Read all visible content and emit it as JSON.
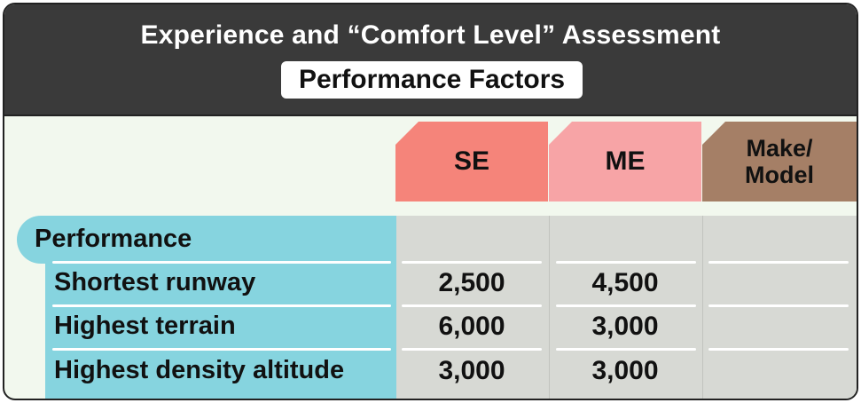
{
  "header": {
    "title": "Experience and “Comfort Level” Assessment",
    "subtitle": "Performance Factors"
  },
  "columns": {
    "se": "SE",
    "me": "ME",
    "make_model_line1": "Make/",
    "make_model_line2": "Model"
  },
  "section": {
    "title": "Performance"
  },
  "rows": [
    {
      "label": "Shortest runway",
      "se": "2,500",
      "me": "4,500",
      "make_model": ""
    },
    {
      "label": "Highest terrain",
      "se": "6,000",
      "me": "3,000",
      "make_model": ""
    },
    {
      "label": "Highest density altitude",
      "se": "3,000",
      "me": "3,000",
      "make_model": ""
    }
  ],
  "colors": {
    "header_bg": "#3a3a3a",
    "se": "#f5847a",
    "me": "#f7a4a6",
    "make_model": "#a57f66",
    "row_label_bg": "#86d4df",
    "cell_bg": "#d7d9d4",
    "page_bg": "#f2f8ee"
  }
}
